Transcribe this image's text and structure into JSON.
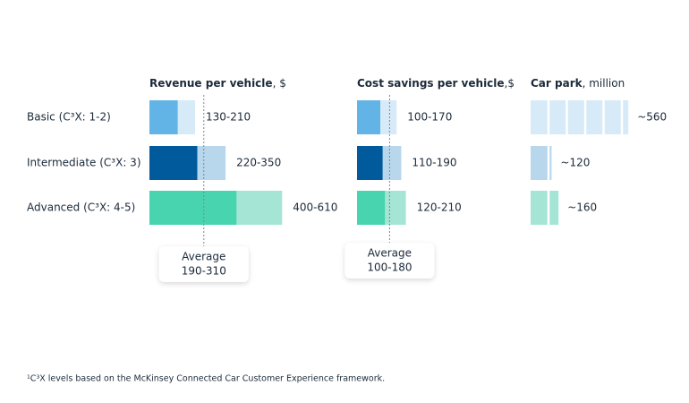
{
  "chart_data": {
    "type": "range-bar",
    "categories": [
      "Basic (C³X: 1-2)",
      "Intermediate (C³X: 3)",
      "Advanced (C³X: 4-5)"
    ],
    "colors": [
      [
        "#62b4e6",
        "#d6eaf8"
      ],
      [
        "#005a9c",
        "#b8d6ec"
      ],
      [
        "#48d4ae",
        "#a5e5d6"
      ]
    ],
    "panels": [
      {
        "title": "Revenue per vehicle",
        "unit": ", $",
        "xlim": [
          0,
          650
        ],
        "low": [
          130,
          220,
          400
        ],
        "high": [
          210,
          350,
          610
        ],
        "value_labels": [
          "130-210",
          "220-350",
          "400-610"
        ],
        "average": {
          "label": "Average",
          "low": 190,
          "high": 310,
          "value_label": "190-310"
        }
      },
      {
        "title": "Cost savings per vehicle",
        "unit": ",$",
        "xlim": [
          0,
          250
        ],
        "low": [
          100,
          110,
          120
        ],
        "high": [
          170,
          190,
          210
        ],
        "value_labels": [
          "100-170",
          "110-190",
          "120-210"
        ],
        "average": {
          "label": "Average",
          "low": 100,
          "high": 180,
          "value_label": "100-180"
        }
      },
      {
        "title": "Car park",
        "unit": ", million",
        "xlim": [
          0,
          600
        ],
        "values": [
          560,
          120,
          160
        ],
        "value_labels": [
          "~560",
          "~120",
          "~160"
        ]
      }
    ],
    "footnote": "¹C³X levels based on the McKinsey Connected Car Customer Experience framework."
  }
}
